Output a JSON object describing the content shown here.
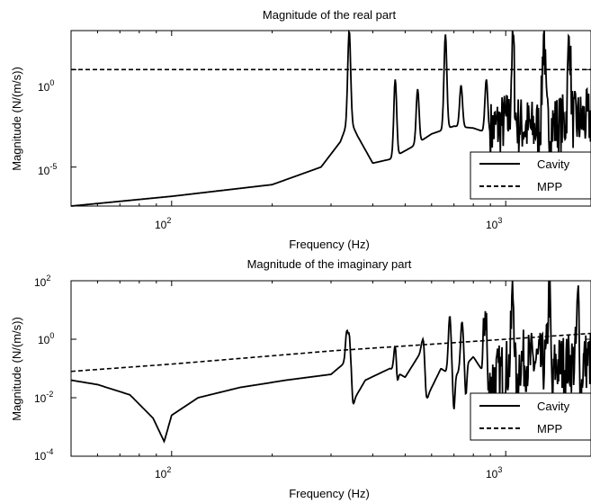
{
  "chart_data": [
    {
      "type": "line",
      "title": "Magnitude of the real part",
      "xlabel": "Frequency (Hz)",
      "ylabel": "Magnitude (N/(m/s))",
      "xscale": "log",
      "yscale": "log",
      "xlim": [
        50,
        1800
      ],
      "ylim_exp": [
        -7,
        2
      ],
      "x_ticks": [
        {
          "base": "10",
          "exp": "2",
          "value": 100
        },
        {
          "base": "10",
          "exp": "3",
          "value": 1000
        }
      ],
      "y_ticks": [
        {
          "base": "10",
          "exp": "0",
          "value": 0
        },
        {
          "base": "10",
          "exp": "-5",
          "value": -5
        }
      ],
      "legend": {
        "position": "bottom-right",
        "entries": [
          "Cavity",
          "MPP"
        ]
      },
      "series": [
        {
          "name": "Cavity",
          "style": "solid",
          "baseline_points_log10y": [
            [
              50,
              -7.0
            ],
            [
              100,
              -6.5
            ],
            [
              200,
              -5.9
            ],
            [
              280,
              -5.0
            ],
            [
              320,
              -3.7
            ],
            [
              340,
              -2.5
            ],
            [
              360,
              -3.4
            ],
            [
              400,
              -4.8
            ],
            [
              450,
              -4.6
            ],
            [
              520,
              -4.0
            ],
            [
              600,
              -3.3
            ],
            [
              700,
              -2.9
            ],
            [
              800,
              -3.0
            ],
            [
              900,
              -3.3
            ],
            [
              1000,
              -2.8
            ],
            [
              1200,
              -3.2
            ],
            [
              1500,
              -2.9
            ],
            [
              1800,
              -2.7
            ]
          ],
          "peaks": [
            [
              340,
              2.0
            ],
            [
              467,
              -0.5
            ],
            [
              545,
              -1.0
            ],
            [
              660,
              1.8
            ],
            [
              735,
              -0.8
            ],
            [
              875,
              -0.5
            ],
            [
              1050,
              1.5
            ],
            [
              1300,
              1.8
            ],
            [
              1550,
              1.6
            ]
          ],
          "dips": [],
          "dense_from": 900
        },
        {
          "name": "MPP",
          "style": "dashed",
          "points_log10y": [
            [
              50,
              0.0
            ],
            [
              1800,
              0.0
            ]
          ]
        }
      ]
    },
    {
      "type": "line",
      "title": "Magnitude of the imaginary part",
      "xlabel": "Frequency (Hz)",
      "ylabel": "Magnitude (N/(m/s))",
      "xscale": "log",
      "yscale": "log",
      "xlim": [
        50,
        1800
      ],
      "ylim_exp": [
        -4,
        2
      ],
      "x_ticks": [
        {
          "base": "10",
          "exp": "2",
          "value": 100
        },
        {
          "base": "10",
          "exp": "3",
          "value": 1000
        }
      ],
      "y_ticks": [
        {
          "base": "10",
          "exp": "2",
          "value": 2
        },
        {
          "base": "10",
          "exp": "0",
          "value": 0
        },
        {
          "base": "10",
          "exp": "-2",
          "value": -2
        },
        {
          "base": "10",
          "exp": "-4",
          "value": -4
        }
      ],
      "legend": {
        "position": "bottom-right",
        "entries": [
          "Cavity",
          "MPP"
        ]
      },
      "series": [
        {
          "name": "Cavity",
          "style": "solid",
          "baseline_points_log10y": [
            [
              50,
              -1.4
            ],
            [
              60,
              -1.55
            ],
            [
              75,
              -1.9
            ],
            [
              88,
              -2.7
            ],
            [
              95,
              -3.5
            ],
            [
              100,
              -2.6
            ],
            [
              120,
              -2.0
            ],
            [
              160,
              -1.65
            ],
            [
              220,
              -1.4
            ],
            [
              300,
              -1.2
            ],
            [
              330,
              -0.8
            ],
            [
              340,
              0.2
            ],
            [
              350,
              -2.1
            ],
            [
              380,
              -1.4
            ],
            [
              450,
              -1.0
            ],
            [
              500,
              -1.3
            ],
            [
              560,
              -0.4
            ],
            [
              580,
              -2.0
            ],
            [
              640,
              -1.0
            ],
            [
              700,
              -1.3
            ],
            [
              800,
              -0.6
            ],
            [
              900,
              -1.5
            ],
            [
              1100,
              -0.8
            ],
            [
              1400,
              -1.0
            ],
            [
              1800,
              -0.8
            ]
          ],
          "peaks": [
            [
              335,
              0.3
            ],
            [
              467,
              -0.2
            ],
            [
              565,
              0.0
            ],
            [
              680,
              0.8
            ],
            [
              740,
              0.6
            ],
            [
              870,
              1.0
            ],
            [
              1050,
              1.5
            ],
            [
              1350,
              1.5
            ],
            [
              1650,
              1.3
            ]
          ],
          "dips": [
            [
              350,
              -2.2
            ],
            [
              475,
              -1.4
            ],
            [
              582,
              -2.0
            ],
            [
              700,
              -2.4
            ],
            [
              760,
              -1.9
            ],
            [
              890,
              -2.1
            ],
            [
              1080,
              -2.2
            ],
            [
              1380,
              -2.0
            ],
            [
              1680,
              -2.0
            ]
          ],
          "dense_from": 850
        },
        {
          "name": "MPP",
          "style": "dashed",
          "points_log10y": [
            [
              50,
              -1.1
            ],
            [
              100,
              -0.85
            ],
            [
              300,
              -0.4
            ],
            [
              1000,
              0.0
            ],
            [
              1800,
              0.2
            ]
          ]
        }
      ]
    }
  ]
}
